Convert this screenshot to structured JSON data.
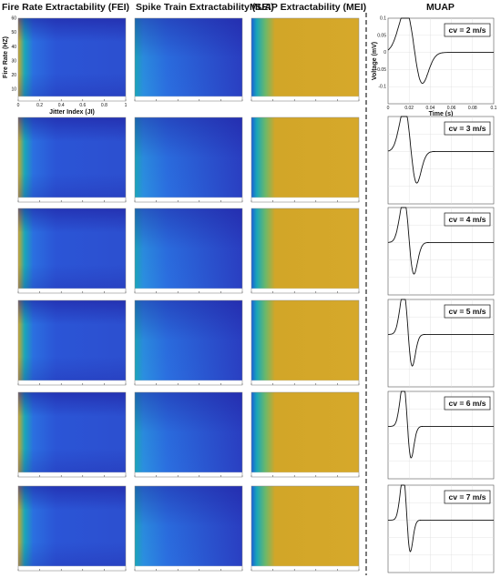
{
  "headers": {
    "fei": "Fire Rate Extractability (FEI)",
    "sei": "Spike Train Extractability (SEI)",
    "mei": "MUAP Extractability (MEI)",
    "muap": "MUAP"
  },
  "colors": {
    "low": "#2d2ab0",
    "mid_blue": "#2b6fe0",
    "teal": "#1aa6b8",
    "gold": "#d2a628",
    "divider": "#222222"
  },
  "chart_data": [
    {
      "type": "heatmap",
      "name": "FEI",
      "xlabel": "Jitter Index (JI)",
      "ylabel": "Fire Rate (HZ)",
      "xticks": [
        "0",
        "0.2",
        "0.4",
        "0.6",
        "0.8",
        "1"
      ],
      "yticks": [
        "10",
        "20",
        "30",
        "40",
        "50",
        "60"
      ],
      "xlim": [
        0,
        1
      ],
      "ylim": [
        5,
        60
      ],
      "colormap": "parula"
    },
    {
      "type": "heatmap",
      "name": "SEI",
      "colormap": "parula"
    },
    {
      "type": "heatmap",
      "name": "MEI",
      "colormap": "parula"
    },
    {
      "type": "line",
      "name": "MUAP",
      "xlabel": "Time (s)",
      "ylabel": "Voltage (mV)",
      "xticks": [
        "0",
        "0.02",
        "0.04",
        "0.06",
        "0.08",
        "0.1"
      ],
      "yticks": [
        "-0.1",
        "-0.05",
        "0",
        "0.05",
        "0.1"
      ],
      "xlim": [
        0,
        0.1
      ],
      "ylim": [
        -0.15,
        0.1
      ],
      "series": [
        {
          "cv": "cv = 2 m/s",
          "speed": 2
        },
        {
          "cv": "cv = 3 m/s",
          "speed": 3
        },
        {
          "cv": "cv = 4 m/s",
          "speed": 4
        },
        {
          "cv": "cv = 5 m/s",
          "speed": 5
        },
        {
          "cv": "cv = 6 m/s",
          "speed": 6
        },
        {
          "cv": "cv = 7 m/s",
          "speed": 7
        }
      ]
    }
  ]
}
